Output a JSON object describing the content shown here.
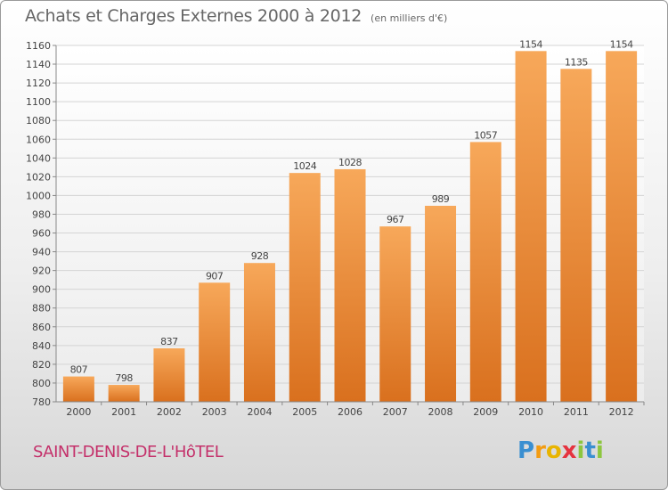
{
  "header": {
    "title": "Achats et Charges Externes 2000 à 2012",
    "subtitle": "(en milliers d'€)"
  },
  "footer": {
    "commune": "SAINT-DENIS-DE-L'HôTEL",
    "logo": "Proxiti"
  },
  "colors": {
    "bar_top": "#f7a85a",
    "bar_bottom": "#d9701e",
    "commune_text": "#c4306a"
  },
  "chart_data": {
    "type": "bar",
    "categories": [
      "2000",
      "2001",
      "2002",
      "2003",
      "2004",
      "2005",
      "2006",
      "2007",
      "2008",
      "2009",
      "2010",
      "2011",
      "2012"
    ],
    "values": [
      807,
      798,
      837,
      907,
      928,
      1024,
      1028,
      967,
      989,
      1057,
      1154,
      1135,
      1154
    ],
    "ylim": [
      780,
      1160
    ],
    "yticks": [
      780,
      800,
      820,
      840,
      860,
      880,
      900,
      920,
      940,
      960,
      980,
      1000,
      1020,
      1040,
      1060,
      1080,
      1100,
      1120,
      1140,
      1160
    ],
    "grid": true,
    "data_labels": true
  }
}
